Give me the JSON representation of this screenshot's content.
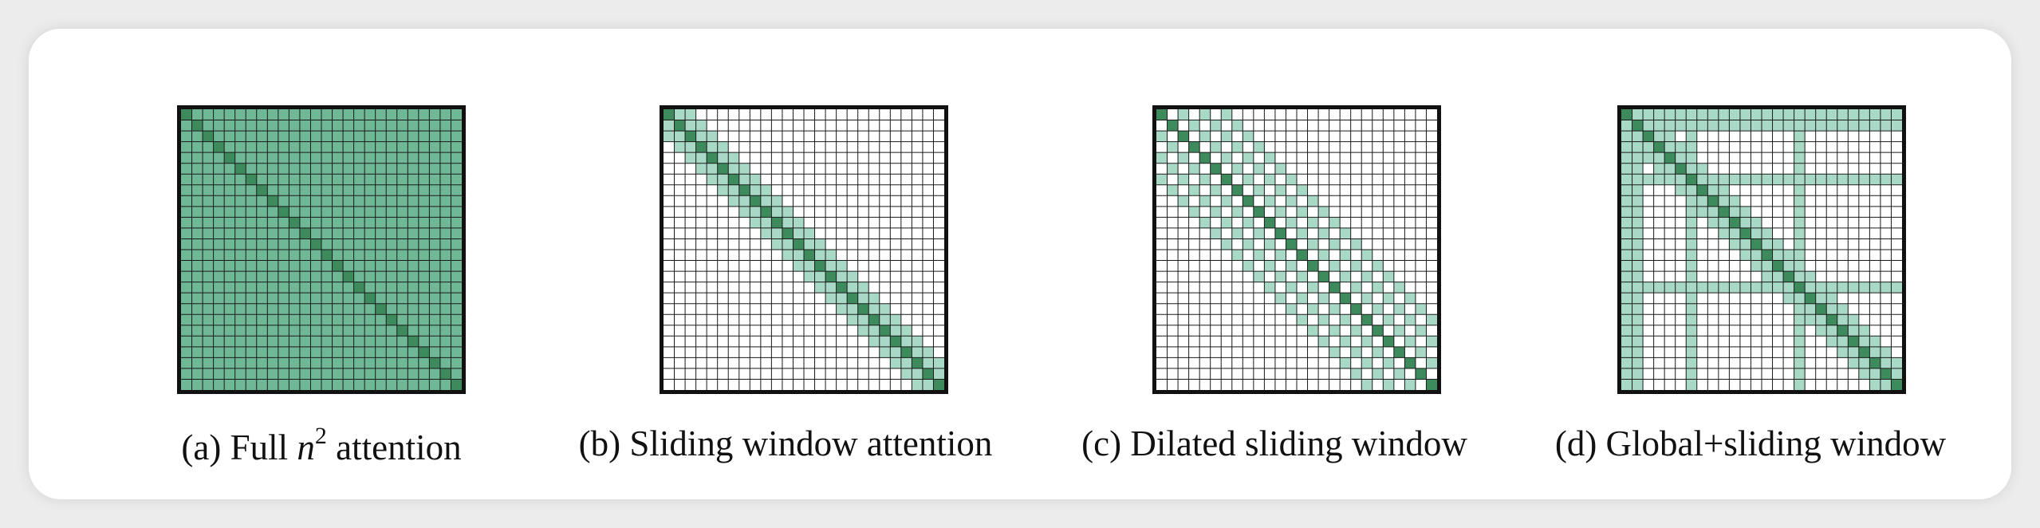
{
  "grid_size": 26,
  "colors": {
    "diagonal": "#3d8b5c",
    "full_fill": "#6fb896",
    "window_fill": "#a7d9c6",
    "grid_line": "#1a1a1a",
    "frame": "#111111"
  },
  "panels": [
    {
      "id": "a",
      "caption_prefix": "(a) Full ",
      "caption_math": "n",
      "caption_sup": "2",
      "caption_suffix": " attention",
      "pattern": "full"
    },
    {
      "id": "b",
      "caption": "(b) Sliding window attention",
      "pattern": "sliding",
      "window_half": 2
    },
    {
      "id": "c",
      "caption": "(c) Dilated sliding window",
      "pattern": "dilated",
      "window_half": 6,
      "dilation": 2
    },
    {
      "id": "d",
      "caption": "(d) Global+sliding window",
      "pattern": "global",
      "window_half": 2,
      "global_indices": [
        0,
        1,
        6,
        16
      ]
    }
  ]
}
